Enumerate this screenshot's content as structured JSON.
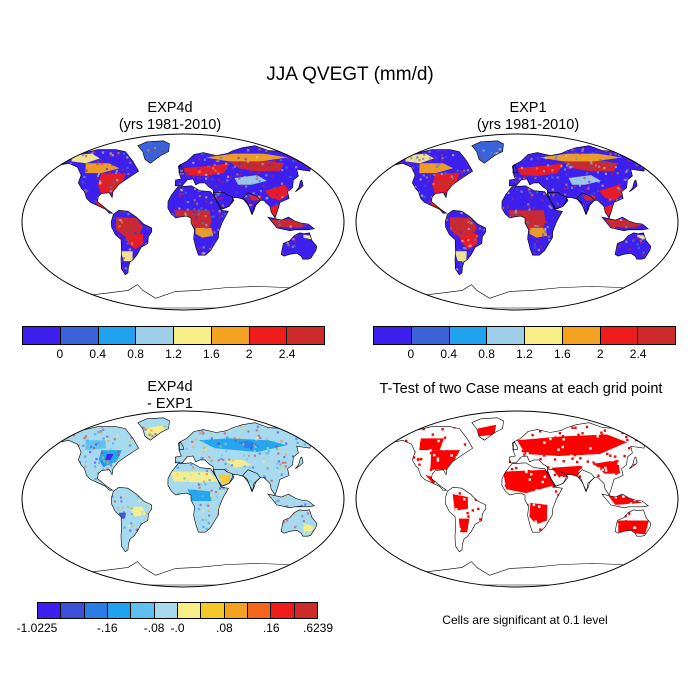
{
  "figure": {
    "title": "JJA QVEGT (mm/d)"
  },
  "panels": [
    {
      "id": "exp4d",
      "title_line1": "EXP4d",
      "title_line2": "(yrs 1981-2010)",
      "field": "model"
    },
    {
      "id": "exp1",
      "title_line1": "EXP1",
      "title_line2": "(yrs 1981-2010)",
      "field": "model"
    },
    {
      "id": "diff",
      "title_line1": "EXP4d",
      "title_line2": "- EXP1",
      "field": "difference"
    },
    {
      "id": "ttest",
      "title_line1": "T-Test of two Case means at each grid point",
      "title_line2": "",
      "field": "significance"
    }
  ],
  "colorbars": {
    "model": {
      "colors": [
        "#3d1fee",
        "#3b62d9",
        "#1fa3ee",
        "#9fcfe8",
        "#f7ee8a",
        "#f3a21f",
        "#ef1c1c",
        "#cf2a2a"
      ],
      "labels": [
        "0",
        "0.4",
        "0.8",
        "1.2",
        "1.6",
        "2",
        "2.4"
      ]
    },
    "difference": {
      "colors": [
        "#3d1fee",
        "#3b4fd9",
        "#2a7de6",
        "#1fa3ee",
        "#5ec0ee",
        "#a7d9ef",
        "#f7ee8a",
        "#f5c82a",
        "#f3a21f",
        "#f2661e",
        "#ef1c1c",
        "#cf2a2a"
      ],
      "labels": [
        "-1.0225",
        "-.16",
        "-.08",
        "-.0",
        ".08",
        ".16",
        ".6239"
      ]
    }
  },
  "note": "Cells are significant at 0.1 level",
  "significance_color": "#ff0000"
}
